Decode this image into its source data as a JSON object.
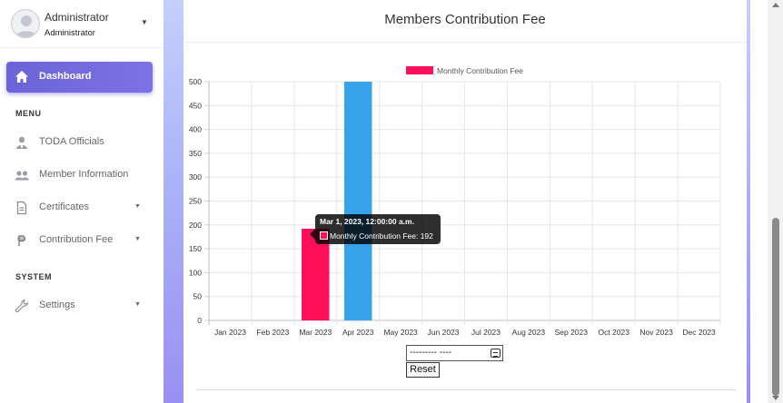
{
  "user": {
    "name": "Administrator",
    "role": "Administrator"
  },
  "nav": {
    "dashboard": "Dashboard",
    "menu_header": "MENU",
    "items": [
      {
        "label": "TODA Officials",
        "icon": "user-tie-icon",
        "caret": false
      },
      {
        "label": "Member Information",
        "icon": "users-icon",
        "caret": false
      },
      {
        "label": "Certificates",
        "icon": "file-icon",
        "caret": true
      },
      {
        "label": "Contribution Fee",
        "icon": "peso-icon",
        "caret": true
      }
    ],
    "system_header": "SYSTEM",
    "settings": "Settings"
  },
  "card": {
    "title": "Members Contribution Fee"
  },
  "tooltip": {
    "title": "Mar 1, 2023, 12:00:00 a.m.",
    "label": "Monthly Contribution Fee: 192"
  },
  "filter": {
    "month_value": "--------- ----",
    "reset_label": "Reset"
  },
  "colors": {
    "series_primary": "#ff0f5a",
    "series_secondary": "#36a2eb",
    "accent": "#6c63d6"
  },
  "chart_data": {
    "type": "bar",
    "legend": "Monthly Contribution Fee",
    "legend_position": "top",
    "grid": true,
    "categories": [
      "Jan 2023",
      "Feb 2023",
      "Mar 2023",
      "Apr 2023",
      "May 2023",
      "Jun 2023",
      "Jul 2023",
      "Aug 2023",
      "Sep 2023",
      "Oct 2023",
      "Nov 2023",
      "Dec 2023"
    ],
    "values": [
      0,
      0,
      192,
      500,
      0,
      0,
      0,
      0,
      0,
      0,
      0,
      0
    ],
    "bar_colors": [
      "#ff0f5a",
      "#36a2eb",
      "#ff0f5a",
      "#36a2eb",
      "#ff0f5a",
      "#36a2eb",
      "#ff0f5a",
      "#36a2eb",
      "#ff0f5a",
      "#36a2eb",
      "#ff0f5a",
      "#36a2eb"
    ],
    "ylim": [
      0,
      500
    ],
    "yticks": [
      0,
      50,
      100,
      150,
      200,
      250,
      300,
      350,
      400,
      450,
      500
    ]
  }
}
